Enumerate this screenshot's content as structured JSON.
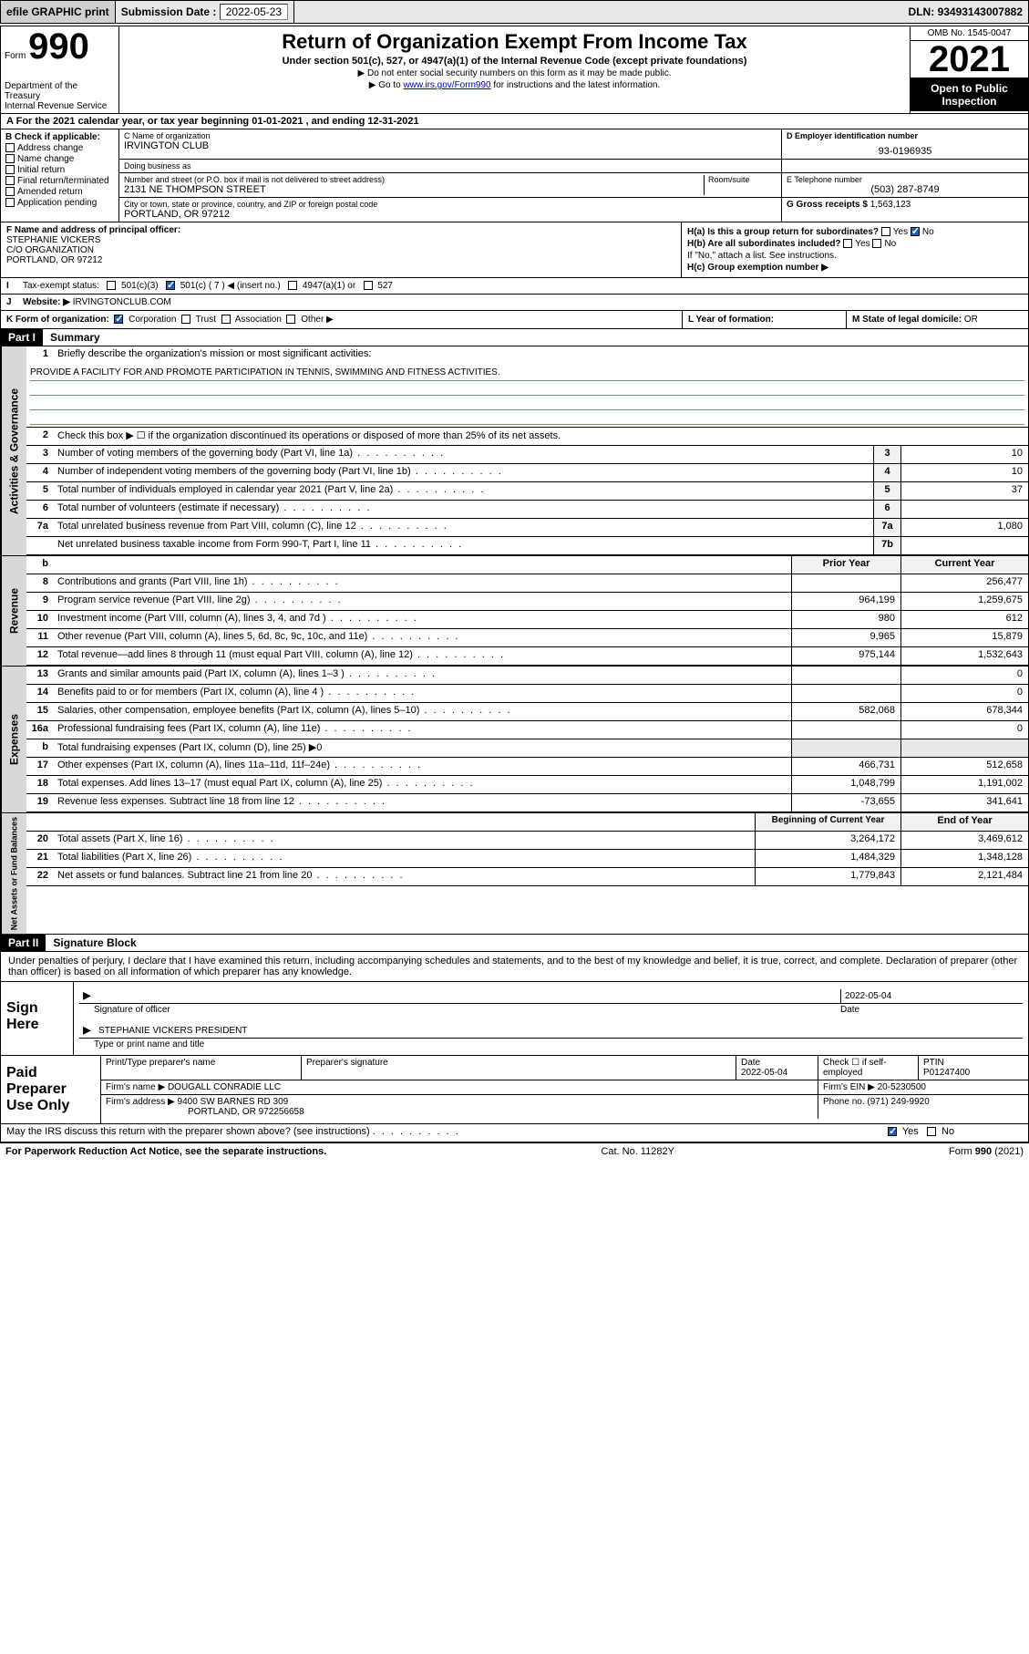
{
  "topbar": {
    "efile": "efile GRAPHIC print",
    "subm_label": "Submission Date :",
    "subm_date": "2022-05-23",
    "dln_label": "DLN:",
    "dln": "93493143007882"
  },
  "header": {
    "form_word": "Form",
    "form_no": "990",
    "dept": "Department of the Treasury",
    "irs": "Internal Revenue Service",
    "title": "Return of Organization Exempt From Income Tax",
    "sub1": "Under section 501(c), 527, or 4947(a)(1) of the Internal Revenue Code (except private foundations)",
    "sub2": "▶ Do not enter social security numbers on this form as it may be made public.",
    "sub3_pre": "▶ Go to ",
    "sub3_link": "www.irs.gov/Form990",
    "sub3_post": " for instructions and the latest information.",
    "omb": "OMB No. 1545-0047",
    "year": "2021",
    "open": "Open to Public Inspection"
  },
  "rowA": {
    "text": "For the 2021 calendar year, or tax year beginning 01-01-2021   , and ending 12-31-2021",
    "prefix": "A"
  },
  "B": {
    "label": "B Check if applicable:",
    "items": [
      "Address change",
      "Name change",
      "Initial return",
      "Final return/terminated",
      "Amended return",
      "Application pending"
    ]
  },
  "C": {
    "name_lbl": "C Name of organization",
    "name": "IRVINGTON CLUB",
    "dba_lbl": "Doing business as",
    "dba": "",
    "addr_lbl": "Number and street (or P.O. box if mail is not delivered to street address)",
    "room_lbl": "Room/suite",
    "addr": "2131 NE THOMPSON STREET",
    "city_lbl": "City or town, state or province, country, and ZIP or foreign postal code",
    "city": "PORTLAND, OR  97212"
  },
  "D": {
    "ein_lbl": "D Employer identification number",
    "ein": "93-0196935",
    "tel_lbl": "E Telephone number",
    "tel": "(503) 287-8749",
    "gross_lbl": "G Gross receipts $",
    "gross": "1,563,123"
  },
  "F": {
    "lbl": "F  Name and address of principal officer:",
    "name": "STEPHANIE VICKERS",
    "co": "C/O ORGANIZATION",
    "city": "PORTLAND, OR  97212"
  },
  "H": {
    "a": "H(a)  Is this a group return for subordinates?",
    "a_yes": "Yes",
    "a_no": "No",
    "b": "H(b)  Are all subordinates included?",
    "b_yes": "Yes",
    "b_no": "No",
    "b_note": "If \"No,\" attach a list. See instructions.",
    "c": "H(c)  Group exemption number ▶"
  },
  "I": {
    "lbl": "Tax-exempt status:",
    "opts": [
      "501(c)(3)",
      "501(c) ( 7 ) ◀ (insert no.)",
      "4947(a)(1) or",
      "527"
    ]
  },
  "J": {
    "lbl": "Website: ▶",
    "val": "IRVINGTONCLUB.COM"
  },
  "K": {
    "lbl": "K Form of organization:",
    "opts": [
      "Corporation",
      "Trust",
      "Association",
      "Other ▶"
    ]
  },
  "L": {
    "lbl": "L Year of formation:",
    "val": ""
  },
  "M": {
    "lbl": "M State of legal domicile:",
    "val": "OR"
  },
  "part1": {
    "hdr": "Part I",
    "title": "Summary",
    "q1_lbl": "Briefly describe the organization's mission or most significant activities:",
    "q1_val": "PROVIDE A FACILITY FOR AND PROMOTE PARTICIPATION IN TENNIS, SWIMMING AND FITNESS ACTIVITIES.",
    "q2": "Check this box ▶ ☐  if the organization discontinued its operations or disposed of more than 25% of its net assets.",
    "lines_gov": [
      {
        "n": "3",
        "t": "Number of voting members of the governing body (Part VI, line 1a)",
        "box": "3",
        "v": "10"
      },
      {
        "n": "4",
        "t": "Number of independent voting members of the governing body (Part VI, line 1b)",
        "box": "4",
        "v": "10"
      },
      {
        "n": "5",
        "t": "Total number of individuals employed in calendar year 2021 (Part V, line 2a)",
        "box": "5",
        "v": "37"
      },
      {
        "n": "6",
        "t": "Total number of volunteers (estimate if necessary)",
        "box": "6",
        "v": ""
      },
      {
        "n": "7a",
        "t": "Total unrelated business revenue from Part VIII, column (C), line 12",
        "box": "7a",
        "v": "1,080"
      },
      {
        "n": "",
        "t": "Net unrelated business taxable income from Form 990-T, Part I, line 11",
        "box": "7b",
        "v": ""
      }
    ],
    "col_hdr_prior": "Prior Year",
    "col_hdr_curr": "Current Year",
    "lines_rev": [
      {
        "n": "8",
        "t": "Contributions and grants (Part VIII, line 1h)",
        "p": "",
        "c": "256,477"
      },
      {
        "n": "9",
        "t": "Program service revenue (Part VIII, line 2g)",
        "p": "964,199",
        "c": "1,259,675"
      },
      {
        "n": "10",
        "t": "Investment income (Part VIII, column (A), lines 3, 4, and 7d )",
        "p": "980",
        "c": "612"
      },
      {
        "n": "11",
        "t": "Other revenue (Part VIII, column (A), lines 5, 6d, 8c, 9c, 10c, and 11e)",
        "p": "9,965",
        "c": "15,879"
      },
      {
        "n": "12",
        "t": "Total revenue—add lines 8 through 11 (must equal Part VIII, column (A), line 12)",
        "p": "975,144",
        "c": "1,532,643"
      }
    ],
    "lines_exp": [
      {
        "n": "13",
        "t": "Grants and similar amounts paid (Part IX, column (A), lines 1–3 )",
        "p": "",
        "c": "0"
      },
      {
        "n": "14",
        "t": "Benefits paid to or for members (Part IX, column (A), line 4 )",
        "p": "",
        "c": "0"
      },
      {
        "n": "15",
        "t": "Salaries, other compensation, employee benefits (Part IX, column (A), lines 5–10)",
        "p": "582,068",
        "c": "678,344"
      },
      {
        "n": "16a",
        "t": "Professional fundraising fees (Part IX, column (A), line 11e)",
        "p": "",
        "c": "0"
      },
      {
        "n": "b",
        "t": "Total fundraising expenses (Part IX, column (D), line 25) ▶0",
        "p": null,
        "c": null
      },
      {
        "n": "17",
        "t": "Other expenses (Part IX, column (A), lines 11a–11d, 11f–24e)",
        "p": "466,731",
        "c": "512,658"
      },
      {
        "n": "18",
        "t": "Total expenses. Add lines 13–17 (must equal Part IX, column (A), line 25)",
        "p": "1,048,799",
        "c": "1,191,002"
      },
      {
        "n": "19",
        "t": "Revenue less expenses. Subtract line 18 from line 12",
        "p": "-73,655",
        "c": "341,641"
      }
    ],
    "col_hdr_boy": "Beginning of Current Year",
    "col_hdr_eoy": "End of Year",
    "lines_net": [
      {
        "n": "20",
        "t": "Total assets (Part X, line 16)",
        "p": "3,264,172",
        "c": "3,469,612"
      },
      {
        "n": "21",
        "t": "Total liabilities (Part X, line 26)",
        "p": "1,484,329",
        "c": "1,348,128"
      },
      {
        "n": "22",
        "t": "Net assets or fund balances. Subtract line 21 from line 20",
        "p": "1,779,843",
        "c": "2,121,484"
      }
    ],
    "tab_gov": "Activities & Governance",
    "tab_rev": "Revenue",
    "tab_exp": "Expenses",
    "tab_net": "Net Assets or Fund Balances"
  },
  "part2": {
    "hdr": "Part II",
    "title": "Signature Block",
    "decl": "Under penalties of perjury, I declare that I have examined this return, including accompanying schedules and statements, and to the best of my knowledge and belief, it is true, correct, and complete. Declaration of preparer (other than officer) is based on all information of which preparer has any knowledge."
  },
  "sign": {
    "left": "Sign Here",
    "sig_lbl": "Signature of officer",
    "date_lbl": "Date",
    "date": "2022-05-04",
    "name": "STEPHANIE VICKERS  PRESIDENT",
    "name_lbl": "Type or print name and title"
  },
  "prep": {
    "left": "Paid Preparer Use Only",
    "r1": {
      "c1_lbl": "Print/Type preparer's name",
      "c1": "",
      "c2_lbl": "Preparer's signature",
      "c2": "",
      "c3_lbl": "Date",
      "c3": "2022-05-04",
      "c4_lbl": "Check ☐ if self-employed",
      "c5_lbl": "PTIN",
      "c5": "P01247400"
    },
    "r2": {
      "firm_lbl": "Firm's name    ▶",
      "firm": "DOUGALL CONRADIE LLC",
      "ein_lbl": "Firm's EIN ▶",
      "ein": "20-5230500"
    },
    "r3": {
      "addr_lbl": "Firm's address ▶",
      "addr1": "9400 SW BARNES RD 309",
      "addr2": "PORTLAND, OR  972256658",
      "ph_lbl": "Phone no.",
      "ph": "(971) 249-9920"
    }
  },
  "footer": {
    "q": "May the IRS discuss this return with the preparer shown above? (see instructions)",
    "yes": "Yes",
    "no": "No",
    "pra": "For Paperwork Reduction Act Notice, see the separate instructions.",
    "cat": "Cat. No. 11282Y",
    "form": "Form 990 (2021)"
  }
}
